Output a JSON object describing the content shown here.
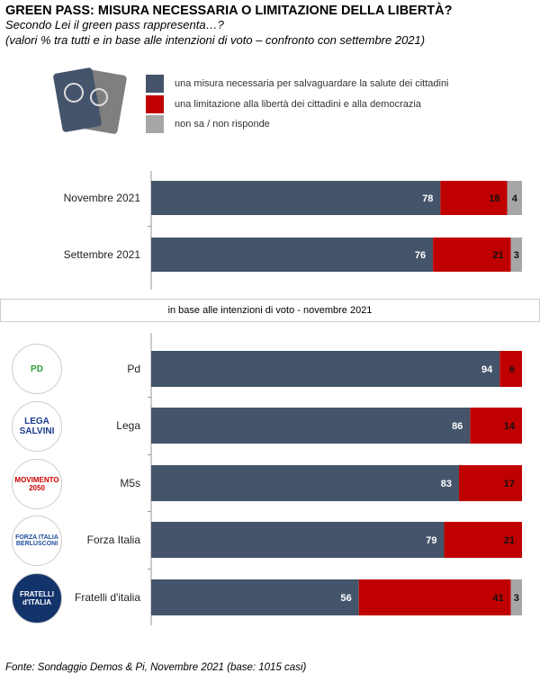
{
  "header": {
    "title": "GREEN PASS: MISURA NECESSARIA O LIMITAZIONE DELLA LIBERTÀ?",
    "subtitle": "Secondo Lei il green pass rappresenta…?",
    "note": "(valori % tra tutti e in base alle intenzioni di voto – confronto con settembre 2021)"
  },
  "banner": "in base alle intenzioni di voto - novembre 2021",
  "source": "Fonte: Sondaggio Demos & Pi, Novembre 2021 (base: 1015 casi)",
  "logos": {
    "pd": "PD",
    "lega": "LEGA SALVINI",
    "m5s": "MOVIMENTO 2050",
    "fi": "FORZA ITALIA BERLUSCONI",
    "fdi": "FRATELLI d'ITALIA"
  },
  "colors": {
    "necessaria": "#44546a",
    "limitazione": "#c00000",
    "nonsa": "#a6a6a6"
  },
  "chart_data": {
    "type": "bar",
    "orientation": "horizontal",
    "stacked": true,
    "xlim": [
      0,
      100
    ],
    "legend": [
      "una misura necessaria per salvaguardare  la salute dei cittadini",
      "una limitazione alla libertà dei cittadini e alla democrazia",
      "non sa / non risponde"
    ],
    "groups": [
      {
        "categories": [
          "Novembre 2021",
          "Settembre 2021"
        ],
        "series": [
          {
            "name": "necessaria",
            "values": [
              78,
              76
            ]
          },
          {
            "name": "limitazione",
            "values": [
              18,
              21
            ]
          },
          {
            "name": "nonsa",
            "values": [
              4,
              3
            ]
          }
        ]
      },
      {
        "categories": [
          "Pd",
          "Lega",
          "M5s",
          "Forza Italia",
          "Fratelli d'italia"
        ],
        "series": [
          {
            "name": "necessaria",
            "values": [
              94,
              86,
              83,
              79,
              56
            ]
          },
          {
            "name": "limitazione",
            "values": [
              6,
              14,
              17,
              21,
              41
            ]
          },
          {
            "name": "nonsa",
            "values": [
              0,
              0,
              0,
              0,
              3
            ]
          }
        ]
      }
    ]
  }
}
